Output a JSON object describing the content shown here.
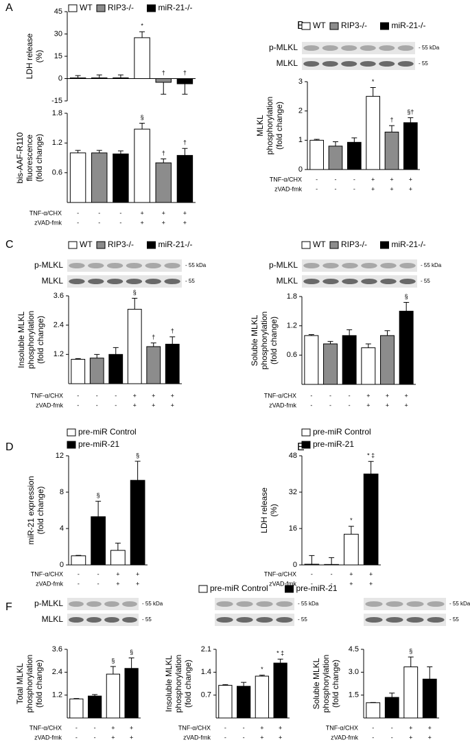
{
  "chart_data": [
    {
      "type": "bar",
      "panel": "A",
      "legend": true,
      "ylabel": [
        "LDH release",
        "(%)"
      ],
      "ylim": [
        -15,
        45
      ],
      "yticks": [
        -15,
        0,
        15,
        30,
        45
      ],
      "series": [
        {
          "name": "WT",
          "color": "#ffffff",
          "values": [
            0.5,
            27.5
          ],
          "errors": [
            1.5,
            4
          ],
          "annotations": [
            null,
            "*"
          ]
        },
        {
          "name": "RIP3-/-",
          "color": "#8c8c8c",
          "values": [
            0.5,
            -2.5
          ],
          "errors": [
            2,
            8
          ],
          "annotations": [
            null,
            "†"
          ]
        },
        {
          "name": "miR-21-/-",
          "color": "#000000",
          "values": [
            0.5,
            -3.5
          ],
          "errors": [
            2,
            7
          ],
          "annotations": [
            null,
            "†"
          ]
        }
      ]
    },
    {
      "type": "bar",
      "ylabel": [
        "bis-AAF-R110",
        "fluorescence",
        "(fold change)"
      ],
      "ylim": [
        0,
        1.8
      ],
      "yticks": [
        0.6,
        1.2,
        1.8
      ],
      "series": [
        {
          "color": "#ffffff",
          "values": [
            1.0,
            1.48
          ],
          "errors": [
            0.05,
            0.12
          ],
          "annotations": [
            null,
            "§"
          ]
        },
        {
          "color": "#8c8c8c",
          "values": [
            1.0,
            0.8
          ],
          "errors": [
            0.05,
            0.08
          ],
          "annotations": [
            null,
            "†"
          ]
        },
        {
          "color": "#000000",
          "values": [
            0.98,
            0.95
          ],
          "errors": [
            0.06,
            0.14
          ],
          "annotations": [
            null,
            "†"
          ]
        }
      ],
      "treatments": [
        {
          "label": "TNF-α/CHX",
          "marks": [
            "-",
            "-",
            "-",
            "+",
            "+",
            "+"
          ]
        },
        {
          "label": "zVAD-fmk",
          "marks": [
            "-",
            "-",
            "-",
            "+",
            "+",
            "+"
          ]
        }
      ]
    },
    {
      "type": "bar",
      "panel": "B",
      "legend": true,
      "ylabel": [
        "MLKL",
        "phosphorylation",
        "(fold change)"
      ],
      "blot": {
        "rows": [
          "p-MLKL",
          "MLKL"
        ],
        "sizes": [
          "- 55 kDa",
          "- 55"
        ]
      },
      "ylim": [
        0,
        3
      ],
      "yticks": [
        0,
        1,
        2,
        3
      ],
      "series": [
        {
          "name": "WT",
          "color": "#ffffff",
          "values": [
            1.0,
            2.5
          ],
          "errors": [
            0.03,
            0.3
          ],
          "annotations": [
            null,
            "*"
          ]
        },
        {
          "name": "RIP3-/-",
          "color": "#8c8c8c",
          "values": [
            0.8,
            1.28
          ],
          "errors": [
            0.15,
            0.22
          ],
          "annotations": [
            null,
            "†"
          ]
        },
        {
          "name": "miR-21-/-",
          "color": "#000000",
          "values": [
            0.93,
            1.6
          ],
          "errors": [
            0.15,
            0.17
          ],
          "annotations": [
            null,
            "§†"
          ]
        }
      ],
      "treatments": [
        {
          "label": "TNF-α/CHX",
          "marks": [
            "-",
            "-",
            "-",
            "+",
            "+",
            "+"
          ]
        },
        {
          "label": "zVAD-fmk",
          "marks": [
            "-",
            "-",
            "-",
            "+",
            "+",
            "+"
          ]
        }
      ]
    },
    {
      "type": "bar",
      "panel": "C",
      "legend": true,
      "ylabel": [
        "Insoluble MLKL",
        "phosphorylation",
        "(fold change)"
      ],
      "blot": {
        "rows": [
          "p-MLKL",
          "MLKL"
        ],
        "sizes": [
          "- 55 kDa",
          "- 55"
        ]
      },
      "ylim": [
        0,
        3.6
      ],
      "yticks": [
        1.2,
        2.4,
        3.6
      ],
      "series": [
        {
          "name": "WT",
          "color": "#ffffff",
          "values": [
            1.0,
            3.05
          ],
          "errors": [
            0.03,
            0.45
          ],
          "annotations": [
            null,
            "§"
          ]
        },
        {
          "name": "RIP3-/-",
          "color": "#8c8c8c",
          "values": [
            1.05,
            1.52
          ],
          "errors": [
            0.15,
            0.15
          ],
          "annotations": [
            null,
            "†"
          ]
        },
        {
          "name": "miR-21-/-",
          "color": "#000000",
          "values": [
            1.2,
            1.62
          ],
          "errors": [
            0.28,
            0.3
          ],
          "annotations": [
            null,
            "†"
          ]
        }
      ],
      "treatments": [
        {
          "label": "TNF-α/CHX",
          "marks": [
            "-",
            "-",
            "-",
            "+",
            "+",
            "+"
          ]
        },
        {
          "label": "zVAD-fmk",
          "marks": [
            "-",
            "-",
            "-",
            "+",
            "+",
            "+"
          ]
        }
      ]
    },
    {
      "type": "bar",
      "legend": true,
      "ylabel": [
        "Soluble MLKL",
        "phosphorylation",
        "(fold change)"
      ],
      "blot": {
        "rows": [
          "p-MLKL",
          "MLKL"
        ],
        "sizes": [
          "- 55 kDa",
          "- 55"
        ]
      },
      "ylim": [
        0,
        1.8
      ],
      "yticks": [
        0.6,
        1.2,
        1.8
      ],
      "series": [
        {
          "name": "WT",
          "color": "#ffffff",
          "values": [
            1.0,
            0.75
          ],
          "errors": [
            0.02,
            0.08
          ],
          "annotations": [
            null,
            null
          ]
        },
        {
          "name": "RIP3-/-",
          "color": "#8c8c8c",
          "values": [
            0.83,
            1.0
          ],
          "errors": [
            0.05,
            0.1
          ],
          "annotations": [
            null,
            null
          ]
        },
        {
          "name": "miR-21-/-",
          "color": "#000000",
          "values": [
            1.0,
            1.5
          ],
          "errors": [
            0.12,
            0.18
          ],
          "annotations": [
            null,
            "§"
          ]
        }
      ],
      "treatments": [
        {
          "label": "TNF-α/CHX",
          "marks": [
            "-",
            "-",
            "-",
            "+",
            "+",
            "+"
          ]
        },
        {
          "label": "zVAD-fmk",
          "marks": [
            "-",
            "-",
            "-",
            "+",
            "+",
            "+"
          ]
        }
      ]
    },
    {
      "type": "bar",
      "panel": "D",
      "legend": true,
      "ylabel": [
        "miR-21 expression",
        "(fold change)"
      ],
      "ylim": [
        0,
        12
      ],
      "yticks": [
        0,
        4,
        8,
        12
      ],
      "series": [
        {
          "name": "pre-miR Control",
          "color": "#ffffff",
          "values": [
            1.0,
            1.6
          ],
          "errors": [
            0.05,
            0.8
          ],
          "annotations": [
            null,
            null
          ]
        },
        {
          "name": "pre-miR-21",
          "color": "#000000",
          "values": [
            5.3,
            9.3
          ],
          "errors": [
            1.7,
            2.1
          ],
          "annotations": [
            "§",
            "§"
          ]
        }
      ],
      "treatments": [
        {
          "label": "TNF-α/CHX",
          "marks": [
            "-",
            "-",
            "+",
            "+"
          ]
        },
        {
          "label": "zVAD-fmk",
          "marks": [
            "-",
            "-",
            "+",
            "+"
          ]
        }
      ]
    },
    {
      "type": "bar",
      "panel": "E",
      "legend": true,
      "ylabel": [
        "LDH release",
        "(%)"
      ],
      "ylim": [
        0,
        48
      ],
      "yticks": [
        0,
        16,
        32,
        48
      ],
      "series": [
        {
          "name": "pre-miR Control",
          "color": "#ffffff",
          "values": [
            0.3,
            13.5
          ],
          "errors": [
            3.8,
            3.5
          ],
          "annotations": [
            null,
            "*"
          ]
        },
        {
          "name": "pre-miR-21",
          "color": "#000000",
          "values": [
            0.2,
            40
          ],
          "errors": [
            3,
            5.5
          ],
          "annotations": [
            null,
            "* ‡"
          ]
        }
      ],
      "treatments": [
        {
          "label": "TNF-α/CHX",
          "marks": [
            "-",
            "-",
            "+",
            "+"
          ]
        },
        {
          "label": "zVAD-fmk",
          "marks": [
            "-",
            "-",
            "+",
            "+"
          ]
        }
      ]
    },
    {
      "type": "bar",
      "panel": "F",
      "ylabel": [
        "Total MLKL",
        "phosphorylation",
        "(fold change)"
      ],
      "blot": {
        "rows": [
          "p-MLKL",
          "MLKL"
        ],
        "sizes": [
          "- 55 kDa",
          "- 55"
        ]
      },
      "ylim": [
        0,
        3.6
      ],
      "yticks": [
        1.2,
        2.4,
        3.6
      ],
      "series": [
        {
          "color": "#ffffff",
          "values": [
            1.0,
            2.3
          ],
          "errors": [
            0.02,
            0.4
          ],
          "annotations": [
            null,
            "§"
          ]
        },
        {
          "color": "#000000",
          "values": [
            1.15,
            2.6
          ],
          "errors": [
            0.08,
            0.55
          ],
          "annotations": [
            null,
            "§"
          ]
        }
      ],
      "treatments": [
        {
          "label": "TNF-α/CHX",
          "marks": [
            "-",
            "-",
            "+",
            "+"
          ]
        },
        {
          "label": "zVAD-fmk",
          "marks": [
            "-",
            "-",
            "+",
            "+"
          ]
        }
      ]
    },
    {
      "type": "bar",
      "legend": true,
      "ylabel": [
        "Insoluble MLKL",
        "phosphorylation",
        "(fold change)"
      ],
      "blot": {
        "sizes": [
          "- 55 kDa",
          "- 55"
        ]
      },
      "ylim": [
        0,
        2.1
      ],
      "yticks": [
        0.7,
        1.4,
        2.1
      ],
      "series": [
        {
          "name": "pre-miR Control",
          "color": "#ffffff",
          "values": [
            1.0,
            1.28
          ],
          "errors": [
            0.02,
            0.03
          ],
          "annotations": [
            null,
            "*"
          ]
        },
        {
          "name": "pre-miR-21",
          "color": "#000000",
          "values": [
            0.97,
            1.68
          ],
          "errors": [
            0.12,
            0.12
          ],
          "annotations": [
            null,
            "* ‡"
          ]
        }
      ],
      "treatments": [
        {
          "label": "TNF-α/CHX",
          "marks": [
            "-",
            "-",
            "+",
            "+"
          ]
        },
        {
          "label": "zVAD-fmk",
          "marks": [
            "-",
            "-",
            "+",
            "+"
          ]
        }
      ]
    },
    {
      "type": "bar",
      "ylabel": [
        "Soluble MLKL",
        "phosphorylation",
        "(fold change)"
      ],
      "blot": {
        "sizes": [
          "- 55 kDa",
          "- 55"
        ]
      },
      "ylim": [
        0,
        4.5
      ],
      "yticks": [
        1.5,
        {
          "value": 3,
          "label": "3.0"
        },
        4.5
      ],
      "series": [
        {
          "color": "#ffffff",
          "values": [
            1.0,
            3.35
          ],
          "errors": [
            0.02,
            0.65
          ],
          "annotations": [
            null,
            "§"
          ]
        },
        {
          "color": "#000000",
          "values": [
            1.35,
            2.55
          ],
          "errors": [
            0.28,
            0.8
          ],
          "annotations": [
            null,
            null
          ]
        }
      ],
      "treatments": [
        {
          "label": "TNF-α/CHX",
          "marks": [
            "-",
            "-",
            "+",
            "+"
          ]
        },
        {
          "label": "zVAD-fmk",
          "marks": [
            "-",
            "-",
            "+",
            "+"
          ]
        }
      ]
    }
  ]
}
